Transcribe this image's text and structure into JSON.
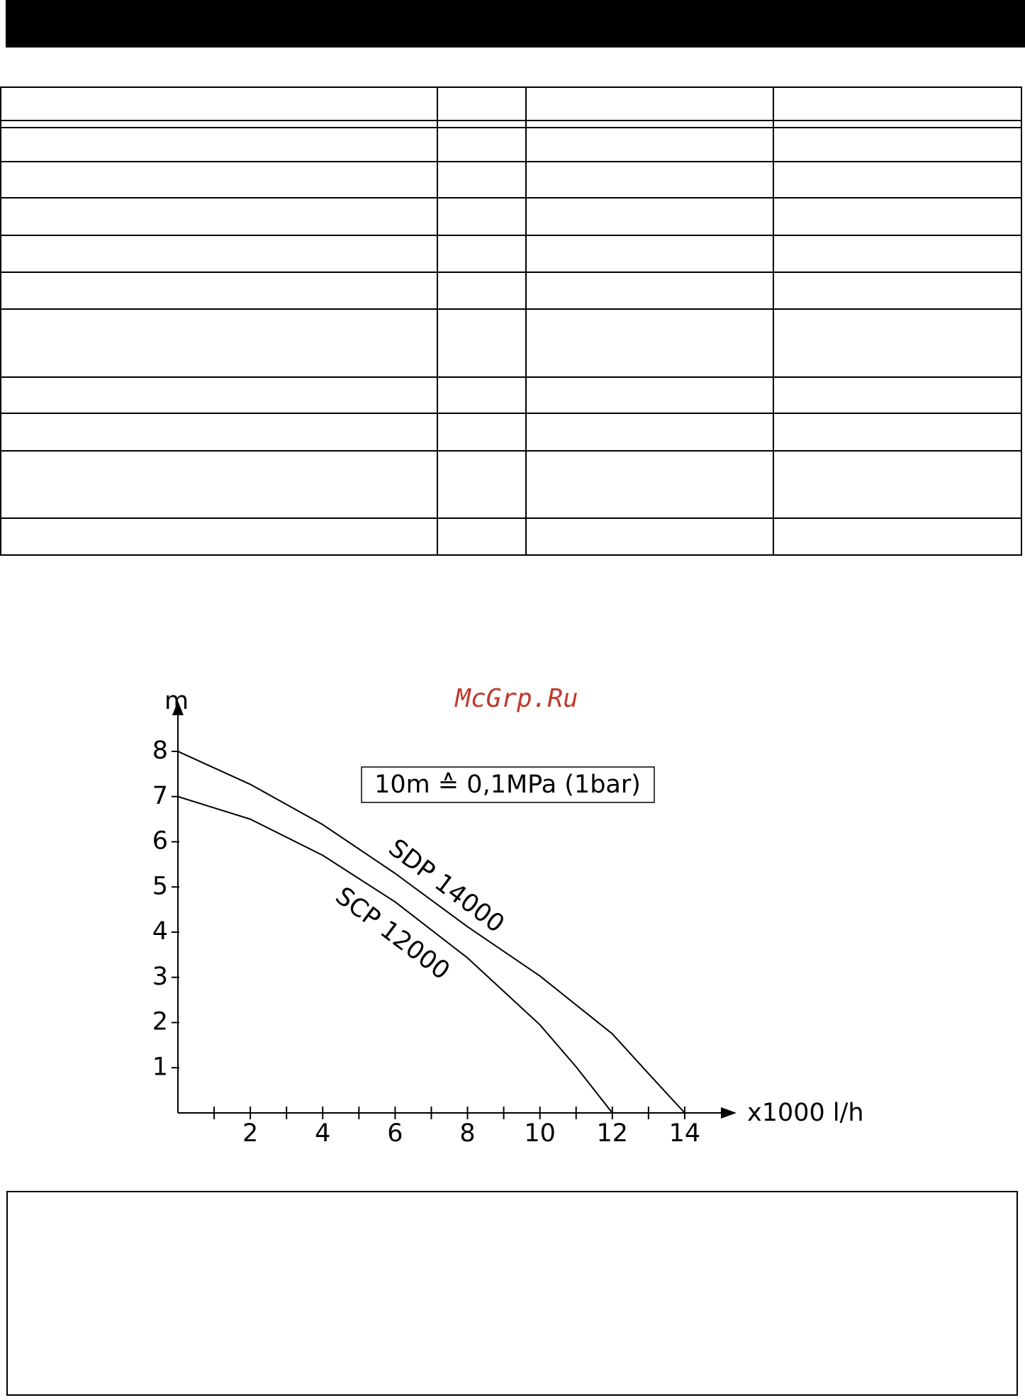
{
  "watermark": "McGrp.Ru",
  "chart_data": {
    "type": "line",
    "y_label": "m",
    "x_label": "x1000 l/h",
    "annotation": "10m ≙ 0,1MPa (1bar)",
    "xlim": [
      0,
      15
    ],
    "ylim": [
      0,
      8.8
    ],
    "xticks": [
      2,
      4,
      6,
      8,
      10,
      12,
      14
    ],
    "xminorticks": [
      1,
      3,
      5,
      7,
      9,
      11,
      13
    ],
    "yticks": [
      1,
      2,
      3,
      4,
      5,
      6,
      7,
      8
    ],
    "series": [
      {
        "name": "SDP 14000",
        "color": "#000000",
        "x": [
          0,
          2,
          4,
          6,
          8,
          10,
          12,
          13,
          14
        ],
        "values": [
          8,
          7.27,
          6.38,
          5.3,
          4.12,
          3.03,
          1.75,
          0.87,
          0
        ]
      },
      {
        "name": "SCP 12000",
        "color": "#000000",
        "x": [
          0,
          2,
          4,
          6,
          8,
          10,
          11,
          12
        ],
        "values": [
          7,
          6.5,
          5.7,
          4.67,
          3.43,
          1.95,
          1.02,
          0
        ]
      }
    ]
  }
}
